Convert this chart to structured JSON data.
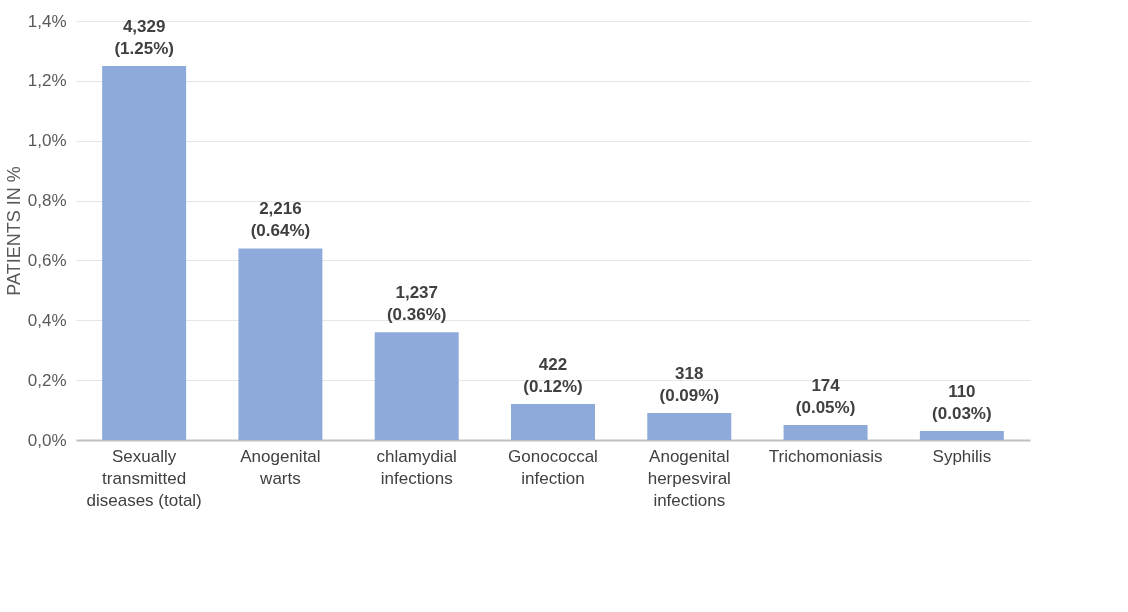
{
  "chart_data": {
    "type": "bar",
    "ylabel": "PATIENTS IN %",
    "categories": [
      "Sexually transmitted diseases (total)",
      "Anogenital warts",
      "chlamydial infections",
      "Gonococcal infection",
      "Anogenital herpesviral infections",
      "Trichomoniasis",
      "Syphilis"
    ],
    "values": [
      1.25,
      0.64,
      0.36,
      0.12,
      0.09,
      0.05,
      0.03
    ],
    "value_labels": [
      "4,329\n(1.25%)",
      "2,216\n(0.64%)",
      "1,237\n(0.36%)",
      "422\n(0.12%)",
      "318\n(0.09%)",
      "174\n(0.05%)",
      "110\n(0.03%)"
    ],
    "color": "#8eaadb",
    "ylim": [
      0,
      1.4
    ],
    "yticks": [
      {
        "value": 0,
        "label": "0,0%"
      },
      {
        "value": 0.2,
        "label": "0,2%"
      },
      {
        "value": 0.4,
        "label": "0,4%"
      },
      {
        "value": 0.6,
        "label": "0,6%"
      },
      {
        "value": 0.8,
        "label": "0,8%"
      },
      {
        "value": 1.0,
        "label": "1,0%"
      },
      {
        "value": 1.2,
        "label": "1,2%"
      },
      {
        "value": 1.4,
        "label": "1,4%"
      }
    ],
    "grid": "y"
  }
}
